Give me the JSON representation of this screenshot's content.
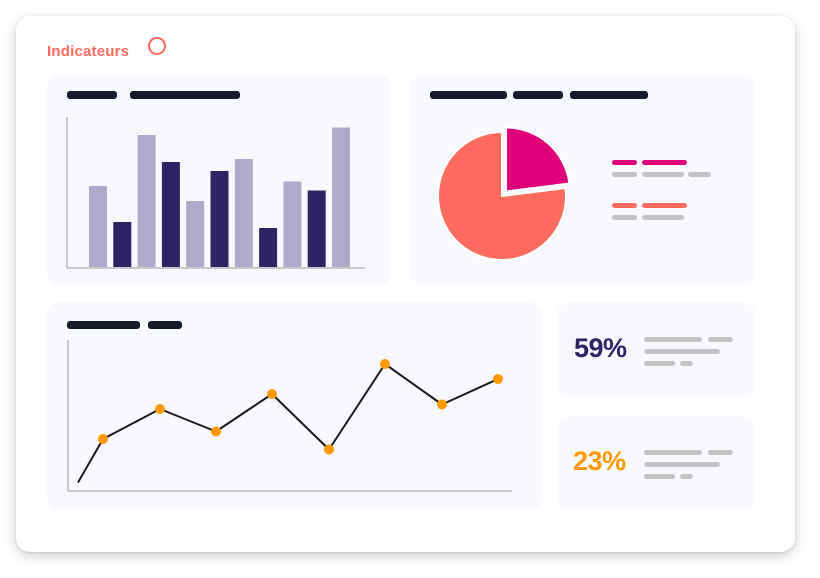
{
  "header": {
    "title": "Indicateurs"
  },
  "colors": {
    "bar_light": "#aeaac9",
    "bar_dark": "#2d2466",
    "pie_main": "#ff6b5e",
    "pie_slice": "#e0007a",
    "line": "#1a1a1a",
    "point": "#ff9900",
    "kpi_primary": "#2d2466",
    "kpi_secondary": "#ff9900"
  },
  "chart_data": [
    {
      "type": "bar",
      "series": [
        {
          "values": [
            54,
            30,
            88,
            70,
            44,
            64,
            72,
            26,
            57,
            51,
            93
          ]
        }
      ],
      "shades": [
        "light",
        "dark",
        "light",
        "dark",
        "light",
        "dark",
        "light",
        "dark",
        "light",
        "dark",
        "light"
      ],
      "ylim": [
        0,
        100
      ]
    },
    {
      "type": "pie",
      "values": [
        23,
        77
      ],
      "colors": [
        "#e0007a",
        "#ff6b5e"
      ]
    },
    {
      "type": "line",
      "x": [
        0,
        1,
        2,
        3,
        4,
        5,
        6,
        7,
        8
      ],
      "values": [
        5,
        34,
        54,
        39,
        64,
        27,
        84,
        57,
        74
      ],
      "markers": [
        false,
        true,
        true,
        true,
        true,
        true,
        true,
        true,
        true
      ],
      "ylim": [
        0,
        100
      ]
    }
  ],
  "kpis": [
    {
      "value": "59%"
    },
    {
      "value": "23%"
    }
  ]
}
